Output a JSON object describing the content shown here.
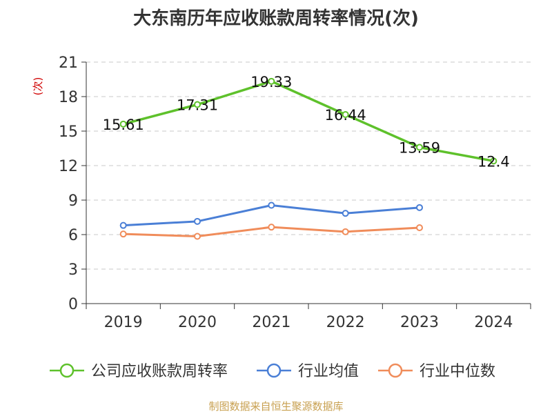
{
  "chart_data": {
    "type": "line",
    "title": "大东南历年应收账款周转率情况(次)",
    "ylabel": "(次)",
    "xlabel": "",
    "categories": [
      "2019",
      "2020",
      "2021",
      "2022",
      "2023",
      "2024"
    ],
    "ylim": [
      0,
      21
    ],
    "yticks": [
      0,
      3,
      6,
      9,
      12,
      15,
      18,
      21
    ],
    "grid": true,
    "legend_position": "bottom",
    "series": [
      {
        "name": "公司应收账款周转率",
        "color": "#5ec12b",
        "values": [
          15.61,
          17.31,
          19.33,
          16.44,
          13.59,
          12.4
        ],
        "labels": [
          "15.61",
          "17.31",
          "19.33",
          "16.44",
          "13.59",
          "12.4"
        ]
      },
      {
        "name": "行业均值",
        "color": "#4a7fd6",
        "values": [
          6.8,
          7.15,
          8.55,
          7.85,
          8.35,
          null
        ]
      },
      {
        "name": "行业中位数",
        "color": "#f08c5a",
        "values": [
          6.05,
          5.85,
          6.65,
          6.25,
          6.6,
          null
        ]
      }
    ]
  },
  "source": "制图数据来自恒生聚源数据库"
}
